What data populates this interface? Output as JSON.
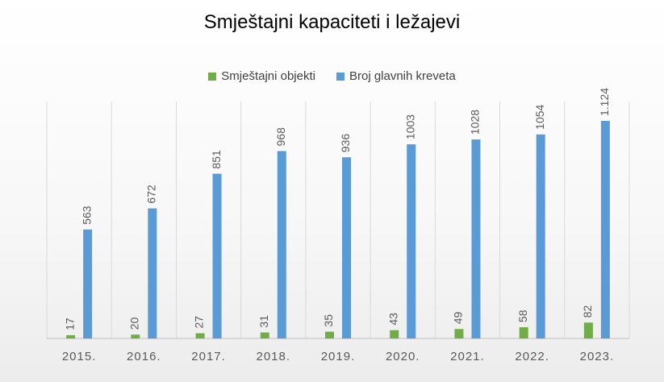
{
  "chart_data": {
    "type": "bar",
    "title": "Smještajni kapaciteti i ležajevi",
    "xlabel": "",
    "ylabel": "",
    "categories": [
      "2015.",
      "2016.",
      "2017.",
      "2018.",
      "2019.",
      "2020.",
      "2021.",
      "2022.",
      "2023."
    ],
    "series": [
      {
        "name": "Smještajni objekti",
        "color": "#70AD47",
        "values": [
          17,
          20,
          27,
          31,
          35,
          43,
          49,
          58,
          82
        ],
        "labels": [
          "17",
          "20",
          "27",
          "31",
          "35",
          "43",
          "49",
          "58",
          "82"
        ]
      },
      {
        "name": "Broj glavnih kreveta",
        "color": "#5B9BD5",
        "values": [
          563,
          672,
          851,
          968,
          936,
          1003,
          1028,
          1054,
          1124
        ],
        "labels": [
          "563",
          "672",
          "851",
          "968",
          "936",
          "1003",
          "1028",
          "1054",
          "1.124"
        ]
      }
    ],
    "ylim": [
      0,
      1150
    ],
    "grid": "vertical",
    "legend": "top-center"
  }
}
